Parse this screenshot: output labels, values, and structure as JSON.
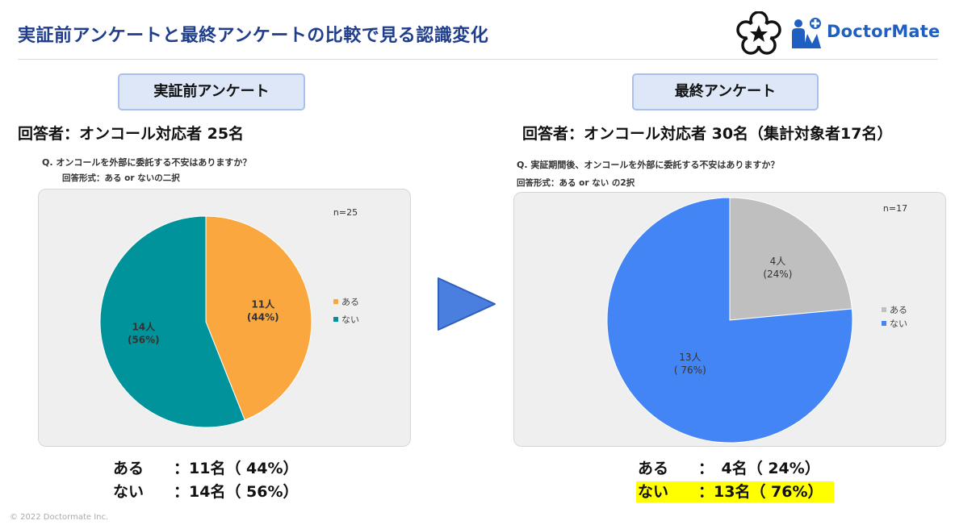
{
  "page": {
    "title": "実証前アンケートと最終アンケートの比較で見る認識変化",
    "brand": "DoctorMate",
    "copyright": "© 2022 Doctormate Inc."
  },
  "colors": {
    "title": "#1f3d8a",
    "aru_left": "#f9a73e",
    "nai_left": "#00939b",
    "aru_right": "#bfbfbf",
    "nai_right": "#4385f5",
    "arrow": "#4a7fe0",
    "highlight": "#ffff00"
  },
  "left": {
    "heading": "実証前アンケート",
    "respondents": "回答者：オンコール対応者 25名",
    "question": "Q.  オンコールを外部に委託する不安はありますか？",
    "answer_format": "回答形式：ある or ないの二択",
    "summary": [
      {
        "label": "ある",
        "count": "：11名（ 44%）"
      },
      {
        "label": "ない",
        "count": "：14名（ 56%）"
      }
    ]
  },
  "right": {
    "heading": "最終アンケート",
    "respondents": "回答者：オンコール対応者 30名（集計対象者17名）",
    "question": "Q.  実証期間後、オンコールを外部に委託する不安はありますか？",
    "answer_format": "回答形式：ある or ない の2択",
    "summary": [
      {
        "label": "ある",
        "count": "：　4名（ 24%）"
      },
      {
        "label": "ない",
        "count": "：13名（ 76%）"
      }
    ]
  },
  "chart_data": [
    {
      "type": "pie",
      "title": "実証前アンケート",
      "n_label": "n=25",
      "categories": [
        "ある",
        "ない"
      ],
      "values": [
        11,
        14
      ],
      "value_labels": [
        "11人",
        "14人"
      ],
      "percent_labels": [
        "(44%)",
        "(56%)"
      ],
      "legend": [
        "ある",
        "ない"
      ],
      "legend_position": "right",
      "colors": [
        "#f9a73e",
        "#00939b"
      ]
    },
    {
      "type": "pie",
      "title": "最終アンケート",
      "n_label": "n=17",
      "categories": [
        "ある",
        "ない"
      ],
      "values": [
        4,
        13
      ],
      "value_labels": [
        "4人",
        "13人"
      ],
      "percent_labels": [
        "(24%)",
        "( 76%)"
      ],
      "legend": [
        "ある",
        "ない"
      ],
      "legend_position": "right",
      "colors": [
        "#bfbfbf",
        "#4385f5"
      ]
    }
  ]
}
